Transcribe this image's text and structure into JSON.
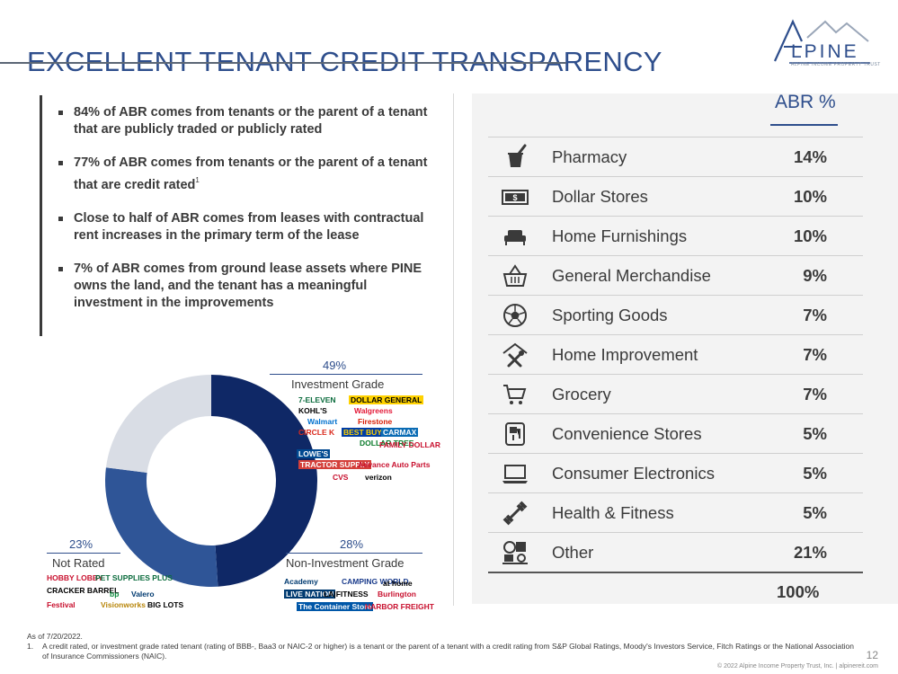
{
  "header": {
    "title": "EXCELLENT TENANT CREDIT TRANSPARENCY",
    "logo_word": "LPINE",
    "logo_sub": "ALPINE INCOME PROPERTY TRUST",
    "colors": {
      "brand": "#2e4e8c",
      "dark_navy": "#0f2866",
      "mid_blue": "#2f5597",
      "light_gray": "#d9dde5"
    }
  },
  "bullets": [
    {
      "text": "84% of ABR comes from tenants or the parent of a tenant that are publicly traded or publicly rated",
      "sup": ""
    },
    {
      "text": "77% of ABR comes from tenants or the parent of a tenant that are credit rated",
      "sup": "1"
    },
    {
      "text": "Close to half of ABR comes from leases with contractual rent increases in the primary term of the lease",
      "sup": ""
    },
    {
      "text": "7% of ABR comes from ground lease assets where PINE owns the land, and the tenant has a meaningful investment in the improvements",
      "sup": ""
    }
  ],
  "abr_table": {
    "header": "ABR %",
    "rows": [
      {
        "icon": "mortar-pestle-icon",
        "label": "Pharmacy",
        "value": "14%"
      },
      {
        "icon": "dollar-bill-icon",
        "label": "Dollar Stores",
        "value": "10%"
      },
      {
        "icon": "sofa-icon",
        "label": "Home Furnishings",
        "value": "10%"
      },
      {
        "icon": "basket-icon",
        "label": "General Merchandise",
        "value": "9%"
      },
      {
        "icon": "soccer-ball-icon",
        "label": "Sporting Goods",
        "value": "7%"
      },
      {
        "icon": "house-tools-icon",
        "label": "Home Improvement",
        "value": "7%"
      },
      {
        "icon": "shopping-cart-icon",
        "label": "Grocery",
        "value": "7%"
      },
      {
        "icon": "fuel-pump-icon",
        "label": "Convenience Stores",
        "value": "5%"
      },
      {
        "icon": "laptop-icon",
        "label": "Consumer Electronics",
        "value": "5%"
      },
      {
        "icon": "dumbbell-icon",
        "label": "Health & Fitness",
        "value": "5%"
      },
      {
        "icon": "assorted-items-icon",
        "label": "Other",
        "value": "21%"
      }
    ],
    "total": "100%"
  },
  "chart_data": {
    "type": "pie",
    "title": "",
    "categories": [
      "Investment Grade",
      "Non-Investment Grade",
      "Not Rated"
    ],
    "values": [
      49,
      28,
      23
    ],
    "value_labels": [
      "49%",
      "28%",
      "23%"
    ],
    "colors": [
      "#0f2866",
      "#2f5597",
      "#d9dde5"
    ],
    "hole": true
  },
  "tenant_logos": {
    "investment_grade": [
      "7-ELEVEN",
      "DOLLAR GENERAL",
      "KOHL'S",
      "Walgreens",
      "Walmart",
      "Firestone",
      "CIRCLE K",
      "BEST BUY",
      "CARMAX",
      "DOLLAR TREE",
      "LOWE'S",
      "FAMILY DOLLAR",
      "TRACTOR SUPPLY",
      "Advance Auto Parts",
      "CVS",
      "verizon"
    ],
    "non_investment_grade": [
      "Academy",
      "CAMPING WORLD",
      "at home",
      "LIVE NATION",
      "LA|FITNESS",
      "Burlington",
      "The Container Store",
      "HARBOR FREIGHT"
    ],
    "not_rated": [
      "HOBBY LOBBY",
      "PET SUPPLIES PLUS",
      "CRACKER BARREL",
      "bp",
      "Valero",
      "Festival",
      "Visionworks",
      "BIG LOTS"
    ]
  },
  "footnotes": {
    "as_of": "As of 7/20/2022.",
    "items": [
      {
        "num": "1.",
        "text": "A credit rated, or investment grade rated tenant (rating of BBB-, Baa3 or NAIC-2 or higher) is a tenant or the parent of a tenant with a credit rating from S&P Global Ratings, Moody's Investors Service, Fitch Ratings or the National Association of Insurance Commissioners (NAIC)."
      }
    ]
  },
  "page_number": "12",
  "copyright": "© 2022 Alpine Income Property Trust, Inc.  |  alpinereit.com"
}
